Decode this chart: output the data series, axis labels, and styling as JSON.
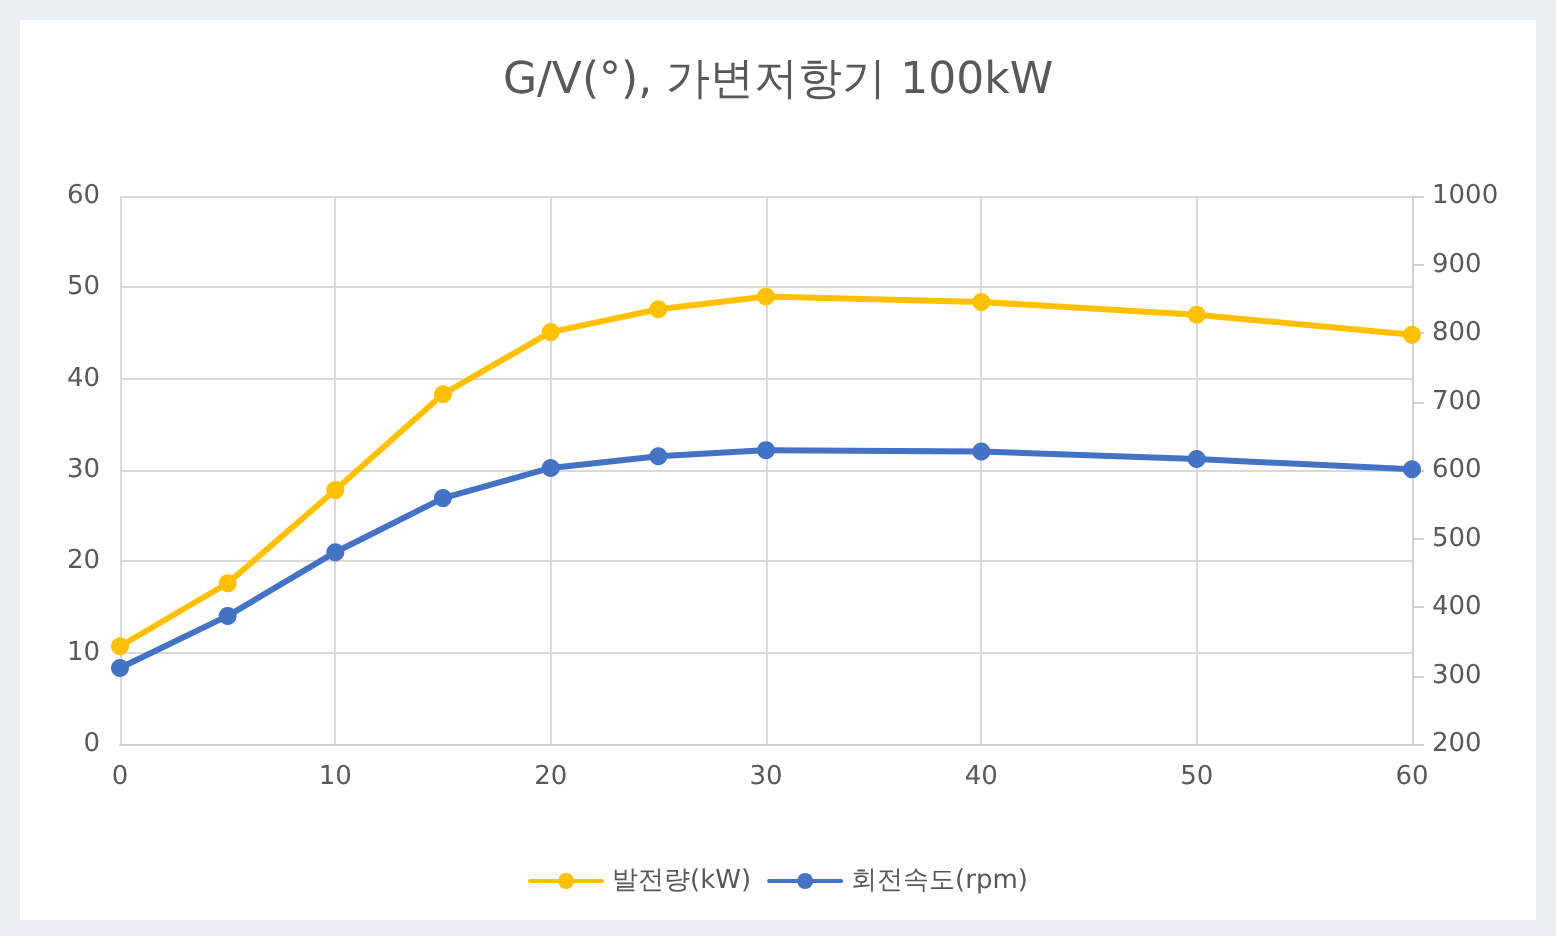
{
  "chart_data": {
    "type": "line",
    "title": "G/V(°), 가변저항기 100kW",
    "x": [
      0,
      5,
      10,
      15,
      20,
      25,
      30,
      40,
      50,
      60
    ],
    "series": [
      {
        "name": "발전량(kW)",
        "color": "#ffc000",
        "values": [
          10.7,
          17.6,
          27.8,
          38.3,
          45.1,
          47.6,
          49,
          48.4,
          47,
          44.8
        ]
      },
      {
        "name": "회전속도(rpm)",
        "color": "#4472c4",
        "axis": "y2",
        "values": [
          311,
          387,
          480,
          559,
          603,
          620,
          629,
          627,
          616,
          601
        ]
      }
    ],
    "xlim": [
      0,
      60
    ],
    "xticks": [
      0,
      10,
      20,
      30,
      40,
      50,
      60
    ],
    "ylim": [
      0,
      60
    ],
    "yticks": [
      0,
      10,
      20,
      30,
      40,
      50,
      60
    ],
    "y2lim": [
      200,
      1000
    ],
    "y2ticks": [
      200,
      300,
      400,
      500,
      600,
      700,
      800,
      900,
      1000
    ],
    "grid": true,
    "legend": "bottom",
    "marker": "circle",
    "line_style": "solid"
  }
}
